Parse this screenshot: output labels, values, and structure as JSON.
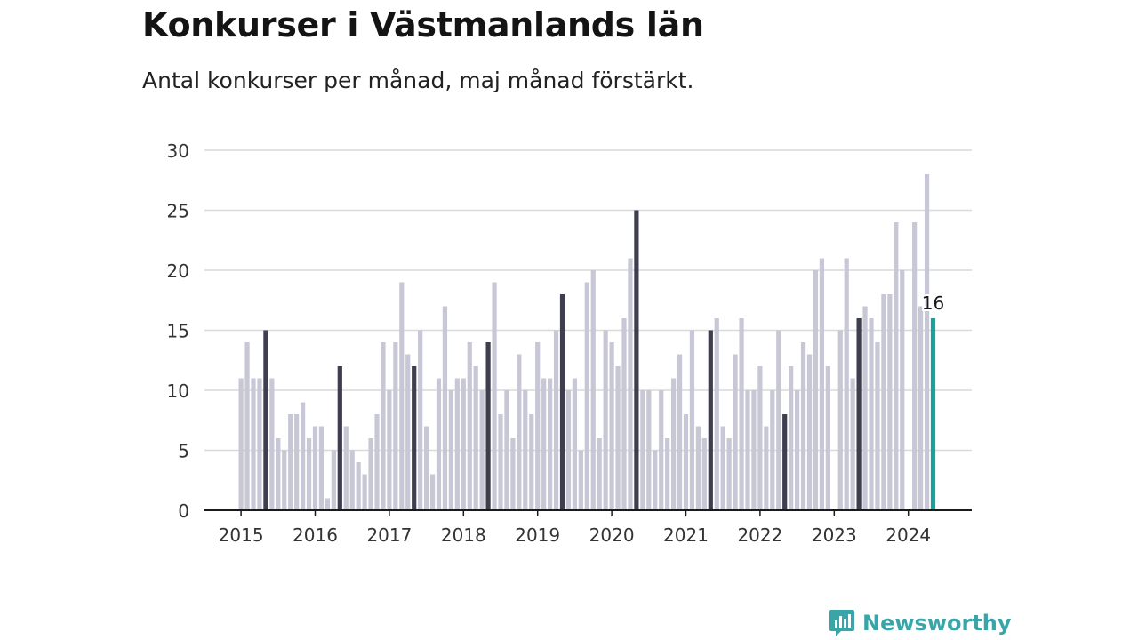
{
  "header": {
    "title": "Konkurser i Västmanlands län",
    "subtitle": "Antal konkurser per månad, maj månad förstärkt."
  },
  "brand": {
    "name": "Newsworthy",
    "icon": "newsworthy-logo-icon"
  },
  "colors": {
    "bar": "#c8c7d6",
    "highlight": "#3e3e4e",
    "latest": "#14a39a",
    "grid": "#d9d9d9",
    "axis": "#1a1a1a",
    "brand": "#3aa5a8"
  },
  "chart_data": {
    "type": "bar",
    "title": "Konkurser i Västmanlands län",
    "subtitle": "Antal konkurser per månad, maj månad förstärkt.",
    "start": "2015-01",
    "ylim": [
      0,
      30
    ],
    "y_ticks": [
      0,
      5,
      10,
      15,
      20,
      25,
      30
    ],
    "x_ticks": [
      "2015",
      "2016",
      "2017",
      "2018",
      "2019",
      "2020",
      "2021",
      "2022",
      "2023",
      "2024"
    ],
    "highlight_month": "maj",
    "grid": true,
    "series": [
      {
        "values": [
          11,
          14,
          11,
          11,
          15,
          11,
          6,
          5,
          8,
          8,
          9,
          6,
          7,
          7,
          1,
          5,
          12,
          7,
          5,
          4,
          3,
          6,
          8,
          14,
          10,
          14,
          19,
          13,
          12,
          15,
          7,
          3,
          11,
          17,
          10,
          11,
          11,
          14,
          12,
          10,
          14,
          19,
          8,
          10,
          6,
          13,
          10,
          8,
          14,
          11,
          11,
          15,
          18,
          10,
          11,
          5,
          19,
          20,
          6,
          15,
          14,
          12,
          16,
          21,
          25,
          10,
          10,
          5,
          10,
          6,
          11,
          13,
          8,
          15,
          7,
          6,
          15,
          16,
          7,
          6,
          13,
          16,
          10,
          10,
          12,
          7,
          10,
          15,
          8,
          12,
          10,
          14,
          13,
          20,
          21,
          12,
          0,
          15,
          21,
          11,
          16,
          17,
          16,
          14,
          18,
          18,
          24,
          20,
          0,
          24,
          17,
          28,
          16
        ]
      }
    ],
    "annotation": {
      "month": "2024-05",
      "label": "16"
    }
  }
}
